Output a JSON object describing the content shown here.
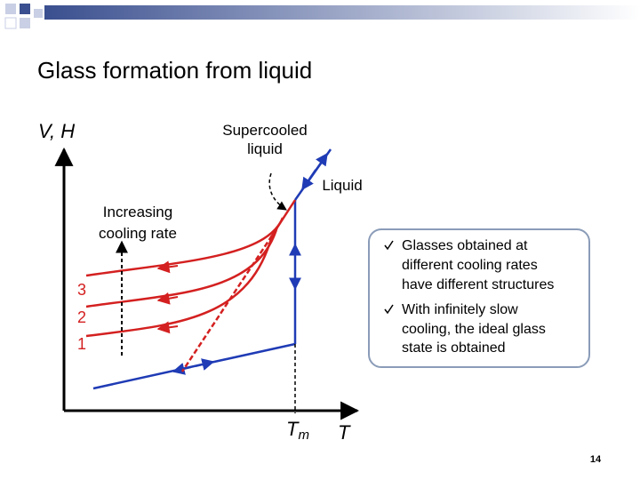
{
  "title": "Glass formation from liquid",
  "y_axis_label": "V, H",
  "x_axis_label": "T",
  "melting_label": {
    "main": "T",
    "sub": "m"
  },
  "annotations": {
    "supercooled": [
      "Supercooled",
      "liquid"
    ],
    "liquid": "Liquid",
    "cooling": [
      "Increasing",
      "cooling rate"
    ]
  },
  "curve_labels": [
    "3",
    "2",
    "1"
  ],
  "bullets": [
    [
      "Glasses obtained at",
      "different cooling rates",
      "have different structures"
    ],
    [
      "With infinitely slow",
      "cooling, the ideal glass",
      "state is obtained"
    ]
  ],
  "page_number": "14"
}
